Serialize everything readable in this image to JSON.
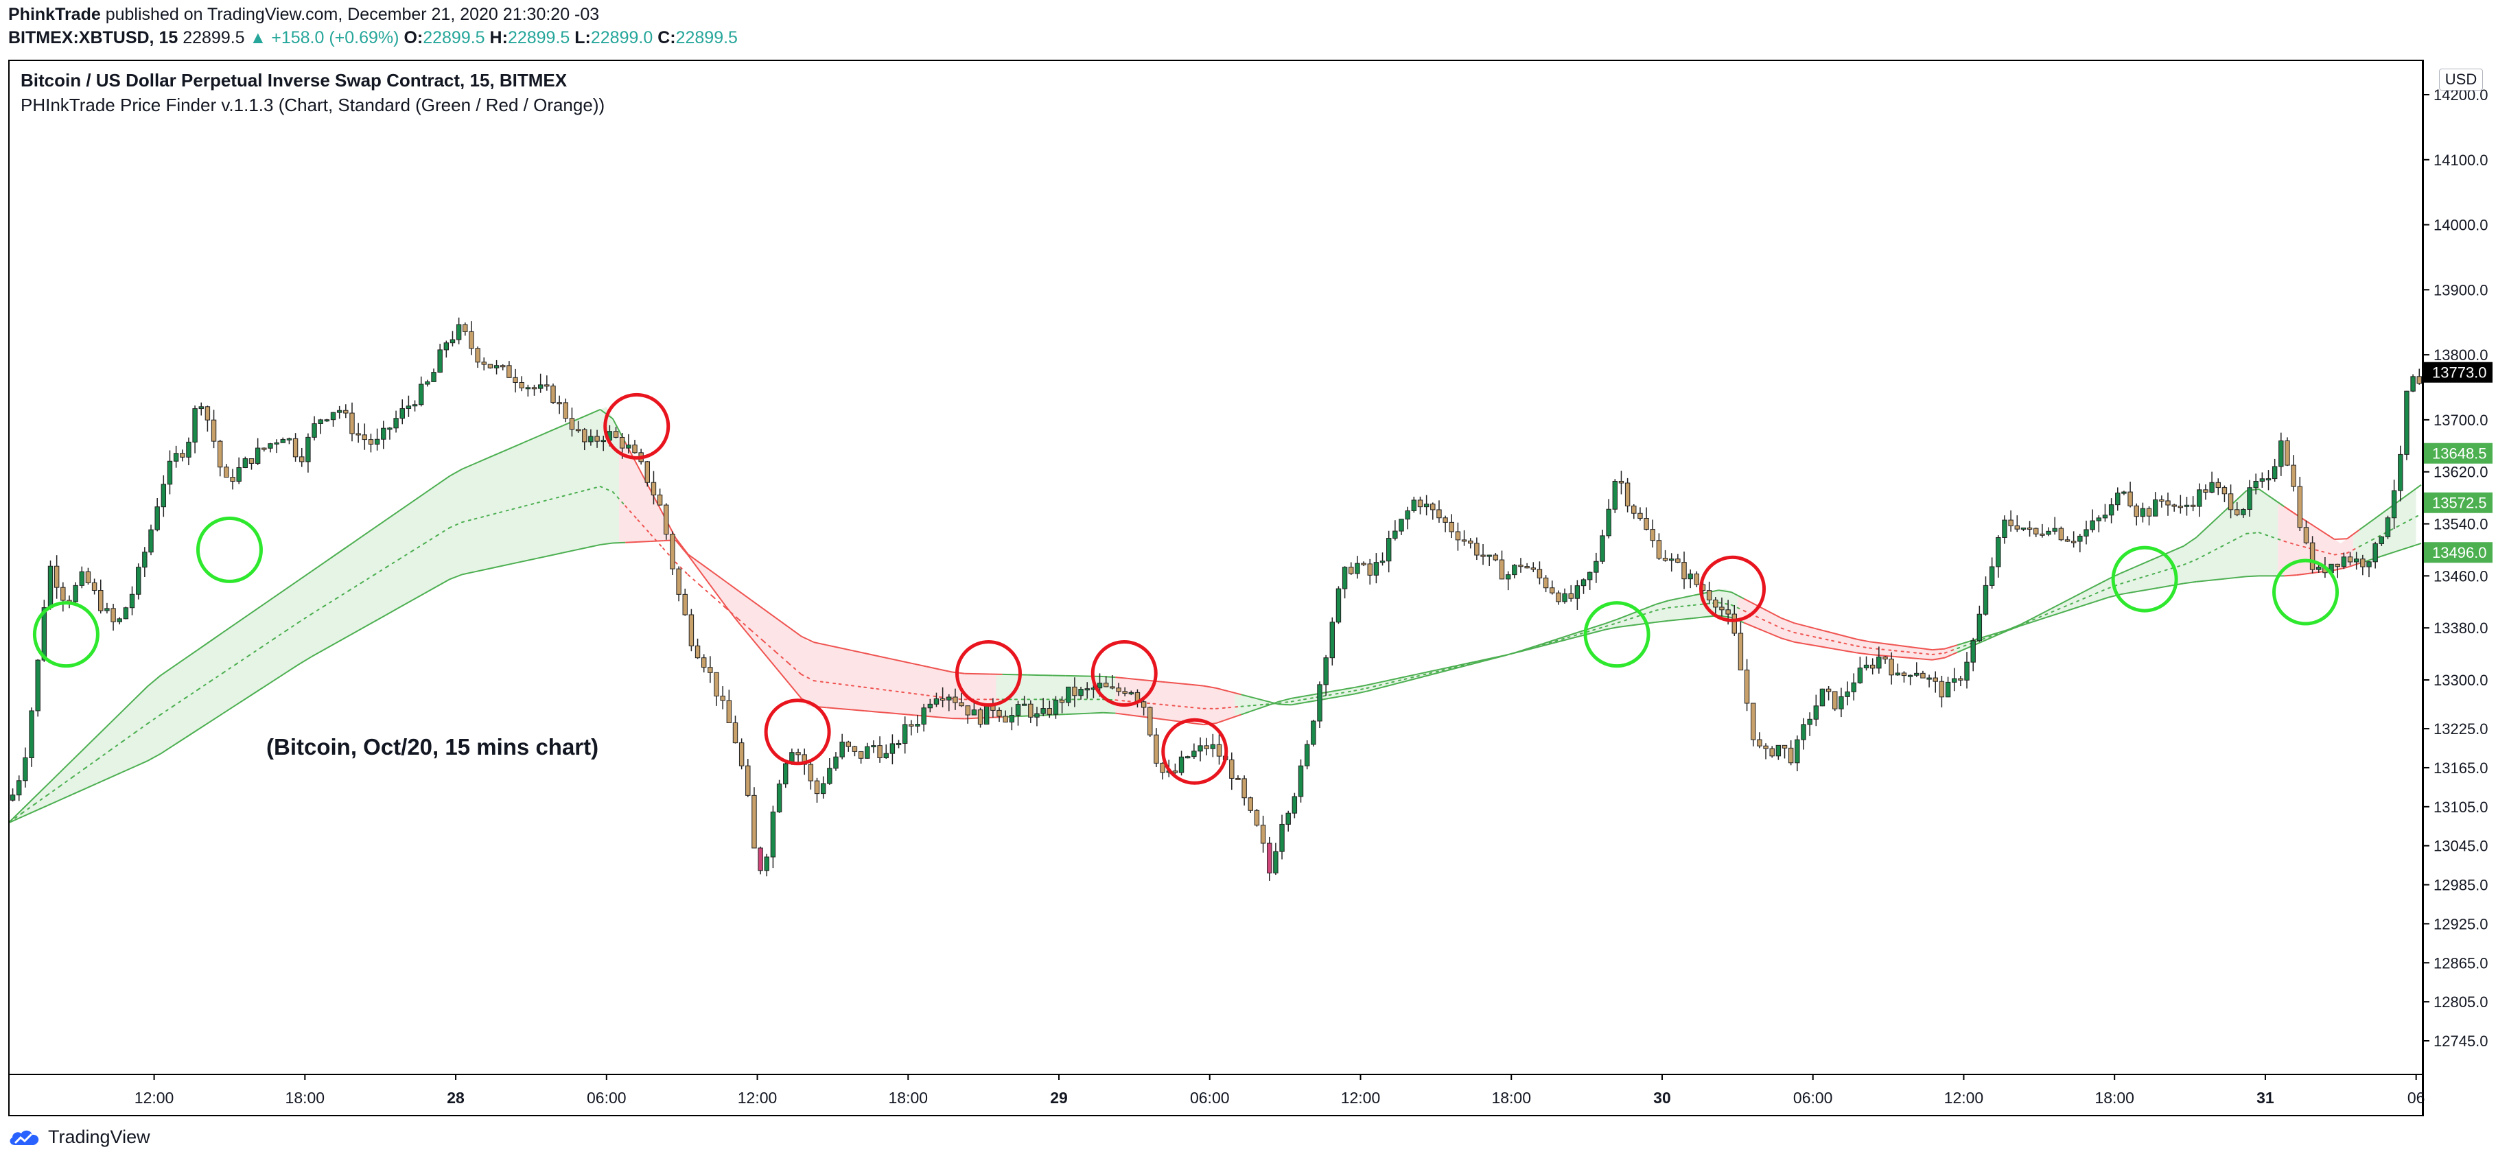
{
  "header": {
    "author": "PhinkTrade",
    "published": "published on TradingView.com, December 21, 2020 21:30:20 -03"
  },
  "quote": {
    "symbol": "BITMEX:XBTUSD, 15",
    "price": "22899.5",
    "change": "▲ +158.0 (+0.69%)",
    "o_label": "O:",
    "o": "22899.5",
    "h_label": "H:",
    "h": "22899.5",
    "l_label": "L:",
    "l": "22899.0",
    "c_label": "C:",
    "c": "22899.5"
  },
  "legend": {
    "title": "Bitcoin / US Dollar Perpetual Inverse Swap Contract, 15, BITMEX",
    "indicator": "PHInkTrade Price Finder v.1.1.3 (Chart, Standard (Green / Red / Orange))"
  },
  "annotation": "(Bitcoin, Oct/20, 15 mins chart)",
  "currency": "USD",
  "footer": {
    "brand": "TradingView",
    "logo_icon": "tradingview-cloud-icon"
  },
  "colors": {
    "up_candle": "#1a8a4a",
    "down_candle": "#c8a06a",
    "pink_candle": "#d0467a",
    "green_band": "#4caf50",
    "red_band": "#ef5350",
    "green_fill": "#e6f4e6",
    "red_fill": "#fde4e6",
    "circle_green": "#2ee82e",
    "circle_red": "#e8141e"
  },
  "chart_data": {
    "type": "candlestick",
    "title": "Bitcoin / US Dollar Perpetual Inverse Swap Contract, 15, BITMEX",
    "x_ticks": [
      {
        "label": "12:00",
        "t": 12,
        "bold": false
      },
      {
        "label": "18:00",
        "t": 18,
        "bold": false
      },
      {
        "label": "28",
        "t": 24,
        "bold": true
      },
      {
        "label": "06:00",
        "t": 30,
        "bold": false
      },
      {
        "label": "12:00",
        "t": 36,
        "bold": false
      },
      {
        "label": "18:00",
        "t": 42,
        "bold": false
      },
      {
        "label": "29",
        "t": 48,
        "bold": true
      },
      {
        "label": "06:00",
        "t": 54,
        "bold": false
      },
      {
        "label": "12:00",
        "t": 60,
        "bold": false
      },
      {
        "label": "18:00",
        "t": 66,
        "bold": false
      },
      {
        "label": "30",
        "t": 72,
        "bold": true
      },
      {
        "label": "06:00",
        "t": 78,
        "bold": false
      },
      {
        "label": "12:00",
        "t": 84,
        "bold": false
      },
      {
        "label": "18:00",
        "t": 90,
        "bold": false
      },
      {
        "label": "31",
        "t": 96,
        "bold": true
      },
      {
        "label": "06",
        "t": 102,
        "bold": false
      }
    ],
    "x_range": [
      6.25,
      102.2
    ],
    "y_ticks": [
      12745.0,
      12805.0,
      12865.0,
      12925.0,
      12985.0,
      13045.0,
      13105.0,
      13165.0,
      13225.0,
      13300.0,
      13380.0,
      13460.0,
      13540.0,
      13620.0,
      13700.0,
      13800.0,
      13900.0,
      14000.0,
      14100.0,
      14200.0
    ],
    "y_tick_labels": [
      "12745.0",
      "12805.0",
      "12865.0",
      "12925.0",
      "12985.0",
      "13045.0",
      "13105.0",
      "13165.0",
      "13225.0",
      "13300.0",
      "13380.0",
      "13460.0",
      "13540.0",
      "13620.0",
      "13700.0",
      "13800.0",
      "13900.0",
      "14000.0",
      "14100.0",
      "14200.0"
    ],
    "price_tags": [
      {
        "label": "13773.0",
        "value": 13773.0,
        "color": "#000000"
      },
      {
        "label": "13648.5",
        "value": 13648.5,
        "color": "#4caf50"
      },
      {
        "label": "13572.5",
        "value": 13572.5,
        "color": "#4caf50"
      },
      {
        "label": "13496.0",
        "value": 13496.0,
        "color": "#4caf50"
      }
    ],
    "price_anchors": [
      [
        6.3,
        13115
      ],
      [
        6.8,
        13170
      ],
      [
        7.3,
        13300
      ],
      [
        7.8,
        13480
      ],
      [
        8.5,
        13420
      ],
      [
        9.2,
        13460
      ],
      [
        9.8,
        13420
      ],
      [
        10.5,
        13380
      ],
      [
        11.2,
        13440
      ],
      [
        11.8,
        13520
      ],
      [
        12.3,
        13600
      ],
      [
        12.8,
        13640
      ],
      [
        13.3,
        13660
      ],
      [
        13.8,
        13740
      ],
      [
        14.3,
        13680
      ],
      [
        14.8,
        13600
      ],
      [
        15.3,
        13620
      ],
      [
        15.8,
        13640
      ],
      [
        16.5,
        13660
      ],
      [
        17.2,
        13680
      ],
      [
        17.8,
        13640
      ],
      [
        18.5,
        13700
      ],
      [
        19.3,
        13720
      ],
      [
        20,
        13680
      ],
      [
        20.8,
        13660
      ],
      [
        21.6,
        13700
      ],
      [
        22.3,
        13730
      ],
      [
        23,
        13760
      ],
      [
        23.6,
        13820
      ],
      [
        24.2,
        13840
      ],
      [
        24.8,
        13800
      ],
      [
        25.5,
        13780
      ],
      [
        26.2,
        13770
      ],
      [
        27,
        13750
      ],
      [
        27.8,
        13740
      ],
      [
        28.5,
        13700
      ],
      [
        29.2,
        13660
      ],
      [
        30,
        13680
      ],
      [
        30.8,
        13660
      ],
      [
        31.5,
        13620
      ],
      [
        32.2,
        13560
      ],
      [
        32.8,
        13440
      ],
      [
        33.4,
        13360
      ],
      [
        34,
        13320
      ],
      [
        34.6,
        13260
      ],
      [
        35.2,
        13200
      ],
      [
        35.6,
        13120
      ],
      [
        36,
        13000
      ],
      [
        36.4,
        13040
      ],
      [
        36.8,
        13140
      ],
      [
        37.3,
        13200
      ],
      [
        37.8,
        13180
      ],
      [
        38.3,
        13120
      ],
      [
        38.8,
        13160
      ],
      [
        39.4,
        13200
      ],
      [
        40,
        13180
      ],
      [
        40.6,
        13200
      ],
      [
        41.2,
        13180
      ],
      [
        41.8,
        13220
      ],
      [
        42.4,
        13240
      ],
      [
        43,
        13280
      ],
      [
        43.6,
        13280
      ],
      [
        44.2,
        13260
      ],
      [
        44.8,
        13240
      ],
      [
        45.4,
        13260
      ],
      [
        46,
        13240
      ],
      [
        46.6,
        13260
      ],
      [
        47.2,
        13240
      ],
      [
        47.8,
        13260
      ],
      [
        48.4,
        13280
      ],
      [
        49,
        13280
      ],
      [
        49.6,
        13290
      ],
      [
        50.2,
        13280
      ],
      [
        50.8,
        13290
      ],
      [
        51.4,
        13260
      ],
      [
        52,
        13160
      ],
      [
        52.5,
        13150
      ],
      [
        53,
        13180
      ],
      [
        53.5,
        13190
      ],
      [
        54,
        13200
      ],
      [
        54.5,
        13180
      ],
      [
        55,
        13150
      ],
      [
        55.5,
        13100
      ],
      [
        56,
        13060
      ],
      [
        56.4,
        13000
      ],
      [
        56.8,
        13080
      ],
      [
        57.3,
        13120
      ],
      [
        57.8,
        13180
      ],
      [
        58.3,
        13280
      ],
      [
        58.8,
        13380
      ],
      [
        59.3,
        13460
      ],
      [
        59.8,
        13480
      ],
      [
        60.4,
        13460
      ],
      [
        61,
        13500
      ],
      [
        61.6,
        13540
      ],
      [
        62.2,
        13580
      ],
      [
        62.8,
        13560
      ],
      [
        63.4,
        13540
      ],
      [
        64,
        13520
      ],
      [
        64.6,
        13500
      ],
      [
        65.2,
        13480
      ],
      [
        65.8,
        13460
      ],
      [
        66.4,
        13480
      ],
      [
        67,
        13460
      ],
      [
        67.6,
        13440
      ],
      [
        68.2,
        13420
      ],
      [
        68.8,
        13440
      ],
      [
        69.4,
        13480
      ],
      [
        69.8,
        13560
      ],
      [
        70.2,
        13620
      ],
      [
        70.6,
        13580
      ],
      [
        71.2,
        13540
      ],
      [
        71.8,
        13500
      ],
      [
        72.4,
        13480
      ],
      [
        73,
        13460
      ],
      [
        73.6,
        13440
      ],
      [
        74.2,
        13420
      ],
      [
        74.8,
        13380
      ],
      [
        75.2,
        13300
      ],
      [
        75.6,
        13220
      ],
      [
        76,
        13180
      ],
      [
        76.6,
        13200
      ],
      [
        77.2,
        13180
      ],
      [
        77.8,
        13240
      ],
      [
        78.4,
        13280
      ],
      [
        79,
        13260
      ],
      [
        79.6,
        13300
      ],
      [
        80.2,
        13320
      ],
      [
        80.8,
        13340
      ],
      [
        81.4,
        13300
      ],
      [
        82,
        13320
      ],
      [
        82.6,
        13300
      ],
      [
        83.2,
        13280
      ],
      [
        83.8,
        13300
      ],
      [
        84.4,
        13360
      ],
      [
        85,
        13460
      ],
      [
        85.6,
        13540
      ],
      [
        86.2,
        13540
      ],
      [
        86.8,
        13520
      ],
      [
        87.4,
        13540
      ],
      [
        88,
        13520
      ],
      [
        88.6,
        13520
      ],
      [
        89.2,
        13540
      ],
      [
        89.8,
        13560
      ],
      [
        90.4,
        13600
      ],
      [
        90.8,
        13560
      ],
      [
        91.4,
        13560
      ],
      [
        92,
        13580
      ],
      [
        92.6,
        13560
      ],
      [
        93.2,
        13580
      ],
      [
        93.8,
        13600
      ],
      [
        94.4,
        13580
      ],
      [
        95,
        13560
      ],
      [
        95.6,
        13600
      ],
      [
        96.2,
        13600
      ],
      [
        96.6,
        13680
      ],
      [
        97,
        13620
      ],
      [
        97.5,
        13520
      ],
      [
        98,
        13460
      ],
      [
        98.6,
        13480
      ],
      [
        99.2,
        13490
      ],
      [
        99.8,
        13480
      ],
      [
        100.4,
        13500
      ],
      [
        100.9,
        13560
      ],
      [
        101.4,
        13640
      ],
      [
        101.7,
        13773
      ],
      [
        102,
        13750
      ]
    ],
    "band_upper": [
      [
        6.2,
        13080
      ],
      [
        12,
        13300
      ],
      [
        18,
        13460
      ],
      [
        24,
        13620
      ],
      [
        30,
        13720
      ],
      [
        33,
        13500
      ],
      [
        38,
        13360
      ],
      [
        44,
        13310
      ],
      [
        50,
        13305
      ],
      [
        54,
        13290
      ],
      [
        57,
        13260
      ],
      [
        60,
        13280
      ],
      [
        66,
        13340
      ],
      [
        70,
        13390
      ],
      [
        72,
        13420
      ],
      [
        74.5,
        13440
      ],
      [
        77,
        13390
      ],
      [
        80,
        13360
      ],
      [
        83,
        13345
      ],
      [
        86,
        13380
      ],
      [
        90,
        13460
      ],
      [
        93,
        13510
      ],
      [
        95.5,
        13600
      ],
      [
        97,
        13560
      ],
      [
        99,
        13510
      ],
      [
        102.2,
        13600
      ]
    ],
    "band_lower": [
      [
        6.2,
        13080
      ],
      [
        12,
        13180
      ],
      [
        18,
        13330
      ],
      [
        24,
        13460
      ],
      [
        30,
        13510
      ],
      [
        32.8,
        13515
      ],
      [
        35,
        13400
      ],
      [
        38,
        13260
      ],
      [
        44,
        13240
      ],
      [
        50,
        13250
      ],
      [
        54,
        13230
      ],
      [
        57,
        13270
      ],
      [
        60,
        13290
      ],
      [
        66,
        13340
      ],
      [
        70,
        13380
      ],
      [
        72,
        13390
      ],
      [
        74.5,
        13400
      ],
      [
        77,
        13360
      ],
      [
        80,
        13340
      ],
      [
        83,
        13330
      ],
      [
        86,
        13380
      ],
      [
        90,
        13430
      ],
      [
        93,
        13450
      ],
      [
        95.5,
        13460
      ],
      [
        97,
        13460
      ],
      [
        99,
        13470
      ],
      [
        102.2,
        13510
      ]
    ],
    "band_mid": [
      [
        6.2,
        13080
      ],
      [
        12,
        13240
      ],
      [
        18,
        13395
      ],
      [
        24,
        13540
      ],
      [
        30,
        13600
      ],
      [
        33,
        13470
      ],
      [
        38,
        13300
      ],
      [
        44,
        13270
      ],
      [
        50,
        13270
      ],
      [
        54,
        13255
      ],
      [
        57,
        13265
      ],
      [
        60,
        13285
      ],
      [
        66,
        13340
      ],
      [
        70,
        13385
      ],
      [
        72,
        13410
      ],
      [
        74.5,
        13420
      ],
      [
        77,
        13375
      ],
      [
        80,
        13350
      ],
      [
        83,
        13338
      ],
      [
        86,
        13380
      ],
      [
        90,
        13445
      ],
      [
        93,
        13480
      ],
      [
        95.5,
        13530
      ],
      [
        97,
        13510
      ],
      [
        99,
        13490
      ],
      [
        102.2,
        13555
      ]
    ],
    "green_circles": [
      [
        8.5,
        13370
      ],
      [
        15,
        13500
      ],
      [
        70.2,
        13370
      ],
      [
        91.2,
        13455
      ],
      [
        97.6,
        13435
      ]
    ],
    "red_circles": [
      [
        31.2,
        13690
      ],
      [
        37.6,
        13220
      ],
      [
        45.2,
        13310
      ],
      [
        50.6,
        13310
      ],
      [
        53.4,
        13190
      ],
      [
        74.8,
        13440
      ]
    ]
  }
}
